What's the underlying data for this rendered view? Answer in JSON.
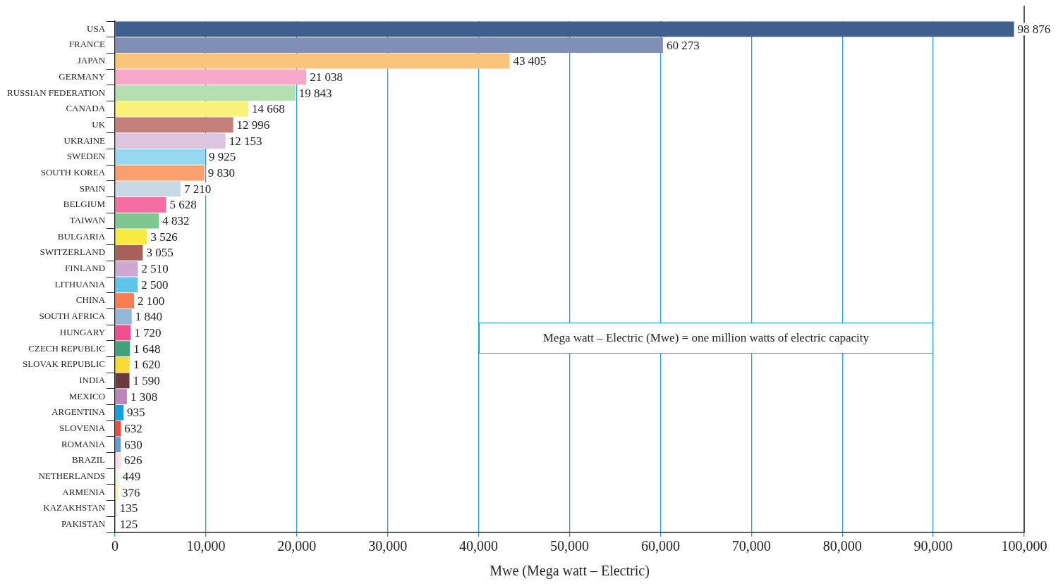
{
  "chart_data": {
    "type": "bar",
    "orientation": "horizontal",
    "xlabel": "Mwe (Mega watt – Electric)",
    "categories": [
      "USA",
      "FRANCE",
      "JAPAN",
      "GERMANY",
      "RUSSIAN FEDERATION",
      "CANADA",
      "UK",
      "UKRAINE",
      "SWEDEN",
      "SOUTH KOREA",
      "SPAIN",
      "BELGIUM",
      "TAIWAN",
      "BULGARIA",
      "SWITZERLAND",
      "FINLAND",
      "LITHUANIA",
      "CHINA",
      "SOUTH AFRICA",
      "HUNGARY",
      "CZECH REPUBLIC",
      "SLOVAK REPUBLIC",
      "INDIA",
      "MEXICO",
      "ARGENTINA",
      "SLOVENIA",
      "ROMANIA",
      "BRAZIL",
      "NETHERLANDS",
      "ARMENIA",
      "KAZAKHSTAN",
      "PAKISTAN"
    ],
    "values": [
      98876,
      60273,
      43405,
      21038,
      19843,
      14668,
      12996,
      12153,
      9925,
      9830,
      7210,
      5628,
      4832,
      3526,
      3055,
      2510,
      2500,
      2100,
      1840,
      1720,
      1648,
      1620,
      1590,
      1308,
      935,
      632,
      630,
      626,
      449,
      376,
      135,
      125
    ],
    "value_labels": [
      "98 876",
      "60 273",
      "43 405",
      "21 038",
      "19 843",
      "14 668",
      "12 996",
      "12 153",
      "9 925",
      "9 830",
      "7 210",
      "5 628",
      "4 832",
      "3 526",
      "3 055",
      "2 510",
      "2 500",
      "2 100",
      "1 840",
      "1 720",
      "1 648",
      "1 620",
      "1 590",
      "1 308",
      "935",
      "632",
      "630",
      "626",
      "449",
      "376",
      "135",
      "125"
    ],
    "colors": [
      "#3f5f8f",
      "#7f8fb5",
      "#f9c57c",
      "#f7a8c8",
      "#b5dfb0",
      "#fbf27a",
      "#c47f7a",
      "#dcc6df",
      "#96d8ef",
      "#f9a06e",
      "#c8d9e6",
      "#f46ea3",
      "#7fc690",
      "#f8ea40",
      "#a6615c",
      "#cfa8d2",
      "#5fc3ea",
      "#f77e52",
      "#93b7d6",
      "#ef4f8f",
      "#3fa27b",
      "#f8dc36",
      "#6b3a3e",
      "#b886b8",
      "#10a0dc",
      "#ee4a3c",
      "#6a9ad2",
      "#f8dce0",
      "#eef5ea",
      "#faf1b8",
      "#f1bdb2",
      "#ffffff"
    ],
    "xlim": [
      0,
      100000
    ],
    "xticks": [
      0,
      {
        "value": 10000,
        "label": "10,000"
      },
      {
        "value": 20000,
        "label": "20,000"
      },
      {
        "value": 30000,
        "label": "30,000"
      },
      {
        "value": 40000,
        "label": "40,000"
      },
      {
        "value": 50000,
        "label": "50,000"
      },
      {
        "value": 60000,
        "label": "60,000"
      },
      {
        "value": 70000,
        "label": "70,000"
      },
      {
        "value": 80000,
        "label": "80,000"
      },
      {
        "value": 90000,
        "label": "90,000"
      },
      {
        "value": 100000,
        "label": "100,000"
      }
    ],
    "grid": "x",
    "annotations": [
      "Mega watt – Electric (Mwe) = one million watts of electric capacity"
    ]
  }
}
